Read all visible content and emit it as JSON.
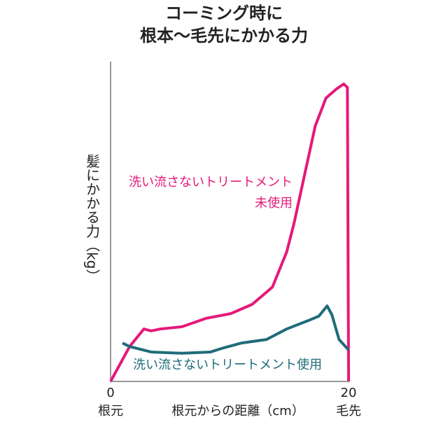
{
  "chart_data": {
    "type": "line",
    "title": [
      "コーミング時に",
      "根本〜毛先にかかる力"
    ],
    "y_label": "髪にかかる力（kg）",
    "x_label": "根元からの距離（cm）",
    "x_end_labels": [
      "根元",
      "毛先"
    ],
    "xlim": [
      0,
      20
    ],
    "xticks": [
      0,
      20
    ],
    "ylim": [
      0,
      100
    ],
    "series": [
      {
        "name": "洗い流さないトリートメント未使用",
        "color": "#e5197a",
        "x": [
          0,
          1.6,
          2.8,
          3.4,
          4.2,
          6.0,
          8.0,
          10.1,
          11.9,
          13.6,
          14.2,
          14.8,
          15.4,
          16.3,
          17.2,
          18.1,
          19.0,
          19.6,
          19.9,
          20
        ],
        "values": [
          0,
          10.9,
          16.4,
          15.8,
          16.4,
          17.1,
          19.7,
          21.2,
          24.1,
          29.5,
          35.0,
          40.5,
          49.2,
          64.6,
          79.9,
          88.6,
          91.5,
          93.0,
          91.9,
          0
        ]
      },
      {
        "name": "洗い流さないトリートメント使用",
        "color": "#1f6b78",
        "x": [
          1.0,
          1.6,
          3.4,
          6.0,
          8.4,
          9.5,
          11.0,
          13.1,
          14.8,
          16.6,
          17.5,
          18.2,
          18.6,
          19.2,
          20
        ],
        "values": [
          12.0,
          10.9,
          9.2,
          8.8,
          9.2,
          10.5,
          12.0,
          13.1,
          16.4,
          19.0,
          20.4,
          23.6,
          20.8,
          13.1,
          9.8
        ]
      }
    ]
  }
}
